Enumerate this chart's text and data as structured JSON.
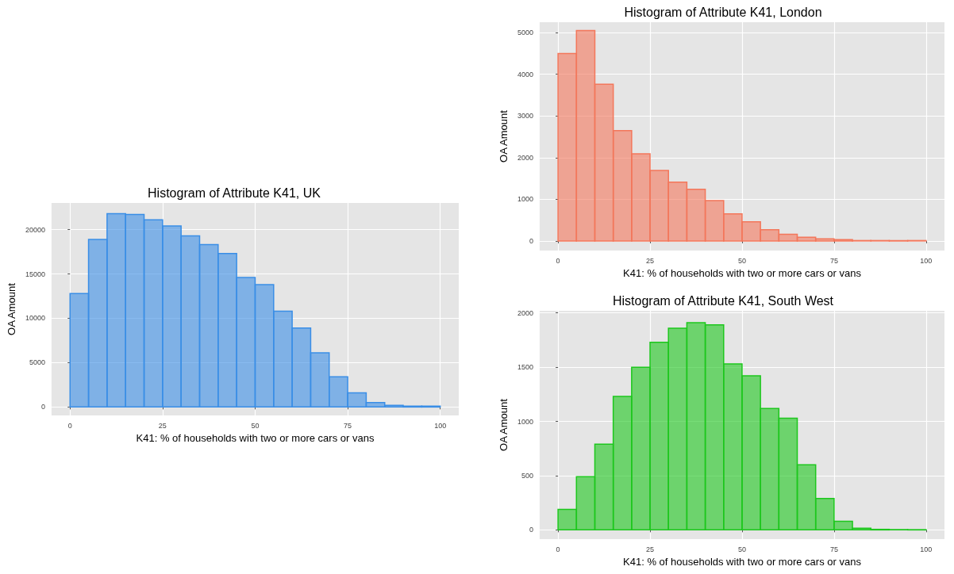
{
  "chart_data": [
    {
      "type": "histogram",
      "title": "Histogram of Attribute K41, UK",
      "xlabel": "K41: % of households with two or more cars or vans",
      "ylabel": "OA Amount",
      "bins": [
        0,
        5,
        10,
        15,
        20,
        25,
        30,
        35,
        40,
        45,
        50,
        55,
        60,
        65,
        70,
        75,
        80,
        85,
        90,
        95,
        100
      ],
      "values": [
        12800,
        18900,
        21800,
        21700,
        21100,
        20400,
        19300,
        18300,
        17300,
        14600,
        13800,
        10800,
        8900,
        6100,
        3400,
        1600,
        500,
        200,
        100,
        100
      ],
      "color": "#3a8ee6",
      "xlim": [
        -5,
        105
      ],
      "ylim": [
        -950,
        23000
      ],
      "xticks": [
        0,
        25,
        50,
        75,
        100
      ],
      "yticks": [
        0,
        5000,
        10000,
        15000,
        20000
      ],
      "grid": true
    },
    {
      "type": "histogram",
      "title": "Histogram of Attribute K41, London",
      "xlabel": "K41: % of households with two or more cars or vans",
      "ylabel": "OA Amount",
      "bins": [
        0,
        5,
        10,
        15,
        20,
        25,
        30,
        35,
        40,
        45,
        50,
        55,
        60,
        65,
        70,
        75,
        80,
        85,
        90,
        95,
        100
      ],
      "values": [
        4500,
        5050,
        3760,
        2650,
        2090,
        1690,
        1410,
        1240,
        970,
        650,
        460,
        270,
        160,
        90,
        50,
        30,
        10,
        10,
        10,
        10
      ],
      "color": "#f3775b",
      "xlim": [
        -5,
        105
      ],
      "ylim": [
        -230,
        5250
      ],
      "xticks": [
        0,
        25,
        50,
        75,
        100
      ],
      "yticks": [
        0,
        1000,
        2000,
        3000,
        4000,
        5000
      ],
      "grid": true
    },
    {
      "type": "histogram",
      "title": "Histogram of Attribute K41, South West",
      "xlabel": "K41: % of households with two or more cars or vans",
      "ylabel": "OA Amount",
      "bins": [
        0,
        5,
        10,
        15,
        20,
        25,
        30,
        35,
        40,
        45,
        50,
        55,
        60,
        65,
        70,
        75,
        80,
        85,
        90,
        95,
        100
      ],
      "values": [
        190,
        490,
        790,
        1230,
        1500,
        1730,
        1860,
        1910,
        1890,
        1530,
        1420,
        1120,
        1030,
        600,
        290,
        80,
        15,
        5,
        3,
        2
      ],
      "color": "#1dc71d",
      "xlim": [
        -5,
        105
      ],
      "ylim": [
        -85,
        2020
      ],
      "xticks": [
        0,
        25,
        50,
        75,
        100
      ],
      "yticks": [
        0,
        500,
        1000,
        1500,
        2000
      ],
      "grid": true
    }
  ]
}
